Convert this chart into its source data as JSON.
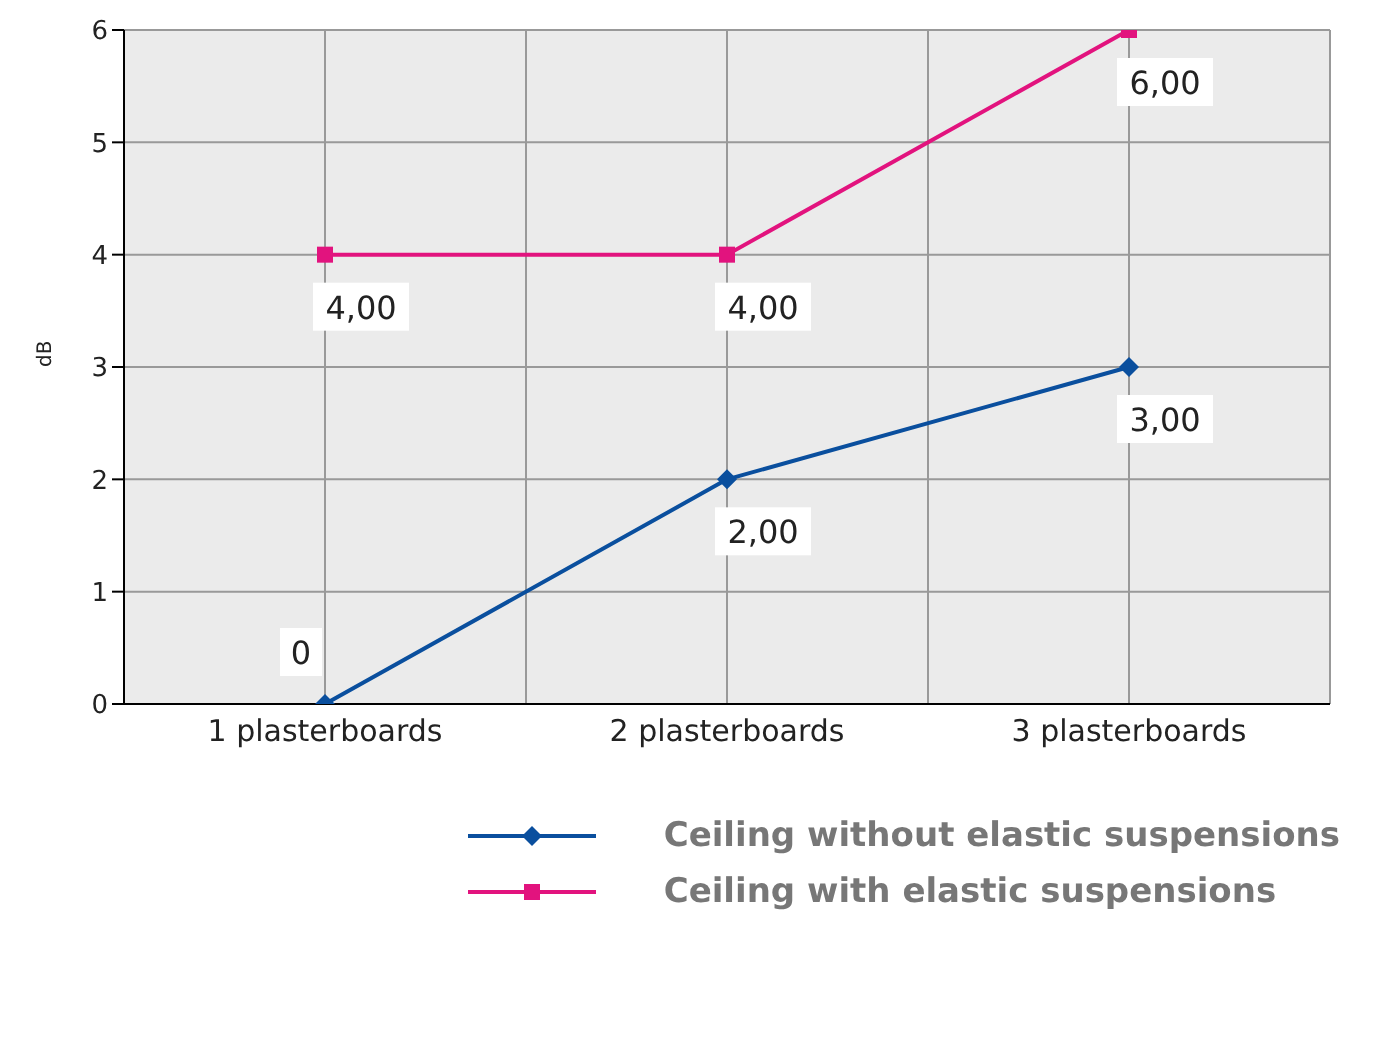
{
  "chart_data": {
    "type": "line",
    "ylabel": "dB",
    "categories": [
      "1 plasterboards",
      "2 plasterboards",
      "3 plasterboards"
    ],
    "series": [
      {
        "name": "Ceiling without elastic suspensions",
        "color": "#0a4f9e",
        "marker": "diamond",
        "values": [
          0,
          2,
          3
        ],
        "value_labels": [
          "0",
          "2,00",
          "3,00"
        ]
      },
      {
        "name": "Ceiling with elastic suspensions",
        "color": "#e2137e",
        "marker": "square",
        "values": [
          4,
          4,
          6
        ],
        "value_labels": [
          "4,00",
          "4,00",
          "6,00"
        ]
      }
    ],
    "ylim": [
      0,
      6
    ],
    "yticks": [
      0,
      1,
      2,
      3,
      4,
      5,
      6
    ],
    "grid": true,
    "legend": "bottom"
  }
}
